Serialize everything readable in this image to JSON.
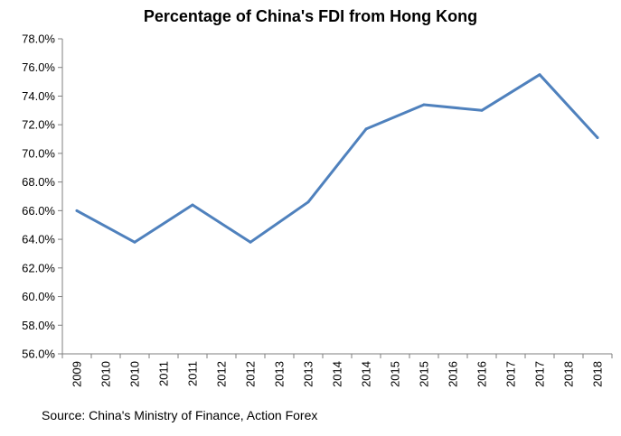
{
  "chart_data": {
    "type": "line",
    "title": "Percentage of China's FDI from Hong Kong",
    "xlabel": "",
    "ylabel": "",
    "categories": [
      "2009",
      "2010",
      "2010",
      "2011",
      "2011",
      "2012",
      "2012",
      "2013",
      "2013",
      "2014",
      "2014",
      "2015",
      "2015",
      "2016",
      "2016",
      "2017",
      "2017",
      "2018",
      "2018"
    ],
    "marker_categories": [
      "2009",
      "2010",
      "2011",
      "2012",
      "2013",
      "2014",
      "2015",
      "2016",
      "2017",
      "2018"
    ],
    "series": [
      {
        "x": [
          "2009",
          "2010",
          "2011",
          "2012",
          "2013",
          "2014",
          "2015",
          "2016",
          "2017",
          "2018"
        ],
        "values": [
          66.0,
          63.8,
          66.4,
          63.8,
          66.6,
          71.7,
          73.4,
          73.0,
          75.5,
          71.1
        ],
        "color": "#4f81bd"
      }
    ],
    "ylim": [
      56.0,
      78.0
    ],
    "yticks": [
      56.0,
      58.0,
      60.0,
      62.0,
      64.0,
      66.0,
      68.0,
      70.0,
      72.0,
      74.0,
      76.0,
      78.0
    ],
    "ytick_labels": [
      "56.0%",
      "58.0%",
      "60.0%",
      "62.0%",
      "64.0%",
      "66.0%",
      "68.0%",
      "70.0%",
      "72.0%",
      "74.0%",
      "76.0%",
      "78.0%"
    ],
    "grid": false,
    "legend": "none"
  },
  "footer": {
    "source": "Source: China's Ministry of Finance, Action Forex"
  }
}
